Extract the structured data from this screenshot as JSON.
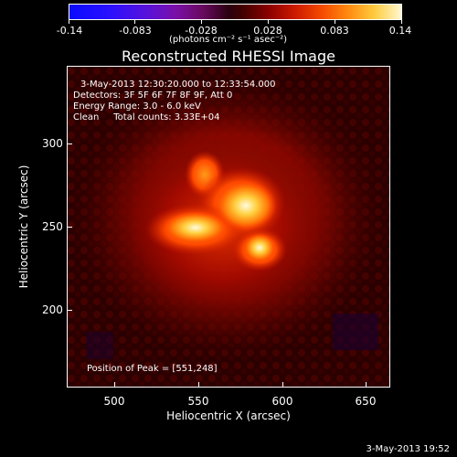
{
  "colorbar": {
    "ticks": [
      "-0.14",
      "-0.083",
      "-0.028",
      "0.028",
      "0.083",
      "0.14"
    ],
    "units": "(photons cm⁻² s⁻¹ asec⁻²)",
    "colors": [
      "#0a0aff",
      "#7a10a8",
      "#2a0010",
      "#8a0000",
      "#f44a00",
      "#fff8d0"
    ]
  },
  "title": "Reconstructed RHESSI Image",
  "info": {
    "time_range": "3-May-2013 12:30:20.000 to 12:33:54.000",
    "detectors": "Detectors: 3F 5F 6F 7F 8F 9F, Att 0",
    "energy": "Energy Range: 3.0 - 6.0 keV",
    "clean": "Clean     Total counts: 3.33E+04",
    "peak": "Position of Peak = [551,248]"
  },
  "axes": {
    "xlabel": "Heliocentric X (arcsec)",
    "ylabel": "Heliocentric Y (arcsec)",
    "xticks": [
      "500",
      "550",
      "600",
      "650"
    ],
    "yticks": [
      "300",
      "250",
      "200"
    ],
    "xlim": [
      472,
      665
    ],
    "ylim": [
      152,
      345
    ]
  },
  "footer": "3-May-2013 19:52"
}
